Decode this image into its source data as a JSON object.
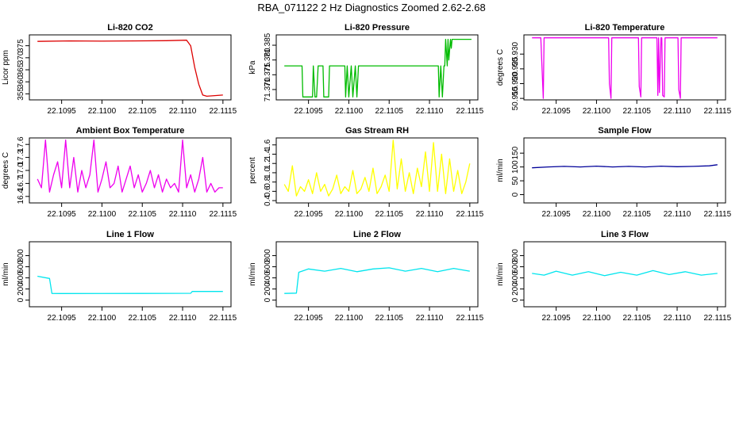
{
  "figure": {
    "title": "RBA_071122  2 Hz Diagnostics Zoomed 2.62-2.68"
  },
  "chart_data": [
    {
      "type": "line",
      "title": "Li-820 CO2",
      "ylabel": "Licor ppm",
      "color": "#dd0000",
      "xlim": [
        22.1091,
        22.1116
      ],
      "ylim": [
        352.5,
        379.5
      ],
      "xticks": [
        "22.1095",
        "22.1100",
        "22.1105",
        "22.1110",
        "22.1115"
      ],
      "yticks": [
        "355",
        "360",
        "365",
        "370",
        "375"
      ],
      "x": [
        22.1092,
        22.1096,
        22.11,
        22.1104,
        22.1108,
        22.11105,
        22.1111,
        22.11115,
        22.1112,
        22.11125,
        22.1113,
        22.1115
      ],
      "y": [
        376.8,
        377.0,
        376.9,
        377.0,
        377.1,
        377.3,
        375.0,
        366.0,
        359.0,
        354.5,
        354.0,
        354.5
      ]
    },
    {
      "type": "line",
      "title": "Li-820 Pressure",
      "ylabel": "kPa",
      "color": "#00bb00",
      "xlim": [
        22.1091,
        22.1116
      ],
      "ylim": [
        71.3665,
        71.3885
      ],
      "xticks": [
        "22.1095",
        "22.1100",
        "22.1105",
        "22.1110",
        "22.1115"
      ],
      "yticks": [
        "71.370",
        "71.375",
        "71.380",
        "71.385"
      ],
      "x": [
        22.1092,
        22.10942,
        22.10943,
        22.10955,
        22.10956,
        22.10958,
        22.1096,
        22.10962,
        22.10968,
        22.10969,
        22.10975,
        22.10976,
        22.10995,
        22.10996,
        22.10998,
        22.11,
        22.11003,
        22.11005,
        22.11008,
        22.1101,
        22.11012,
        22.11014,
        22.11016,
        22.11111,
        22.11112,
        22.11114,
        22.11116,
        22.11118,
        22.11119,
        22.1112,
        22.11122,
        22.11123,
        22.11124,
        22.11126,
        22.11127,
        22.11128,
        22.1113,
        22.11152
      ],
      "y": [
        71.378,
        71.378,
        71.3675,
        71.3675,
        71.378,
        71.3675,
        71.3675,
        71.378,
        71.378,
        71.3675,
        71.3675,
        71.378,
        71.378,
        71.3675,
        71.378,
        71.3675,
        71.378,
        71.3675,
        71.378,
        71.3675,
        71.378,
        71.378,
        71.378,
        71.378,
        71.3675,
        71.378,
        71.3675,
        71.378,
        71.378,
        71.387,
        71.378,
        71.387,
        71.38,
        71.387,
        71.384,
        71.387,
        71.387,
        71.387
      ]
    },
    {
      "type": "line",
      "title": "Li-820 Temperature",
      "ylabel": "degrees C",
      "color": "#ee00ee",
      "xlim": [
        22.1091,
        22.1116
      ],
      "ylim": [
        50.9145,
        50.9365
      ],
      "xticks": [
        "22.1095",
        "22.1100",
        "22.1105",
        "22.1110",
        "22.1115"
      ],
      "yticks": [
        "50.915",
        "50.920",
        "50.925",
        "50.930"
      ],
      "x": [
        22.1092,
        22.10931,
        22.10932,
        22.10934,
        22.10935,
        22.10936,
        22.11015,
        22.11016,
        22.11018,
        22.11019,
        22.11052,
        22.11053,
        22.11055,
        22.11056,
        22.11075,
        22.11076,
        22.11077,
        22.11078,
        22.1108,
        22.11081,
        22.11082,
        22.11084,
        22.11085,
        22.11101,
        22.11102,
        22.11104,
        22.11105,
        22.1115
      ],
      "y": [
        50.9355,
        50.9355,
        50.928,
        50.915,
        50.9355,
        50.9355,
        50.9355,
        50.92,
        50.915,
        50.9355,
        50.9355,
        50.919,
        50.9155,
        50.9355,
        50.9355,
        50.916,
        50.9355,
        50.917,
        50.9355,
        50.9355,
        50.916,
        50.9155,
        50.9355,
        50.9355,
        50.918,
        50.915,
        50.9355,
        50.9355
      ]
    },
    {
      "type": "line",
      "title": "Ambient Box Temperature",
      "ylabel": "degrees C",
      "color": "#ee00ee",
      "xlim": [
        22.1091,
        22.1116
      ],
      "ylim": [
        16.25,
        17.75
      ],
      "xticks": [
        "22.1095",
        "22.1100",
        "22.1105",
        "22.1110",
        "22.1115"
      ],
      "yticks": [
        "16.4",
        "16.7",
        "17.0",
        "17.3",
        "17.6"
      ],
      "x": [
        22.1092,
        22.10925,
        22.1093,
        22.10935,
        22.1094,
        22.10945,
        22.1095,
        22.10955,
        22.1096,
        22.10965,
        22.1097,
        22.10975,
        22.1098,
        22.10985,
        22.1099,
        22.10995,
        22.11,
        22.11005,
        22.1101,
        22.11015,
        22.1102,
        22.11025,
        22.1103,
        22.11035,
        22.1104,
        22.11045,
        22.1105,
        22.11055,
        22.1106,
        22.11065,
        22.1107,
        22.11075,
        22.1108,
        22.11085,
        22.1109,
        22.11095,
        22.111,
        22.11105,
        22.1111,
        22.11115,
        22.1112,
        22.11125,
        22.1113,
        22.11135,
        22.1114,
        22.11145,
        22.1115
      ],
      "y": [
        16.8,
        16.6,
        17.7,
        16.5,
        16.9,
        17.2,
        16.6,
        17.7,
        16.6,
        17.3,
        16.5,
        17.0,
        16.6,
        16.9,
        17.7,
        16.5,
        16.8,
        17.2,
        16.6,
        16.7,
        17.1,
        16.5,
        16.8,
        17.1,
        16.6,
        16.9,
        16.5,
        16.7,
        17.0,
        16.6,
        16.9,
        16.5,
        16.8,
        16.6,
        16.7,
        16.5,
        17.7,
        16.6,
        16.9,
        16.5,
        16.8,
        17.3,
        16.5,
        16.7,
        16.5,
        16.6,
        16.6
      ]
    },
    {
      "type": "line",
      "title": "Gas Stream RH",
      "ylabel": "percent",
      "color": "#ffff00",
      "xlim": [
        22.1091,
        22.1116
      ],
      "ylim": [
        0.35,
        1.75
      ],
      "xticks": [
        "22.1095",
        "22.1100",
        "22.1105",
        "22.1110",
        "22.1115"
      ],
      "yticks": [
        "0.4",
        "0.6",
        "0.8",
        "1.0",
        "1.2",
        "1.4",
        "1.6"
      ],
      "x": [
        22.1092,
        22.10925,
        22.1093,
        22.10935,
        22.1094,
        22.10945,
        22.1095,
        22.10955,
        22.1096,
        22.10965,
        22.1097,
        22.10975,
        22.1098,
        22.10985,
        22.1099,
        22.10995,
        22.11,
        22.11005,
        22.1101,
        22.11015,
        22.1102,
        22.11025,
        22.1103,
        22.11035,
        22.1104,
        22.11045,
        22.1105,
        22.11055,
        22.1106,
        22.11065,
        22.1107,
        22.11075,
        22.1108,
        22.11085,
        22.1109,
        22.11095,
        22.111,
        22.11105,
        22.1111,
        22.11115,
        22.1112,
        22.11125,
        22.1113,
        22.11135,
        22.1114,
        22.11145,
        22.1115
      ],
      "y": [
        0.75,
        0.6,
        1.15,
        0.5,
        0.7,
        0.6,
        0.85,
        0.55,
        1.0,
        0.6,
        0.75,
        0.5,
        0.65,
        0.95,
        0.55,
        0.7,
        0.6,
        1.05,
        0.55,
        0.65,
        0.9,
        0.6,
        1.1,
        0.55,
        0.7,
        0.95,
        0.6,
        1.7,
        0.65,
        1.3,
        0.6,
        1.0,
        0.55,
        1.1,
        0.7,
        1.45,
        0.6,
        1.65,
        0.6,
        1.4,
        0.55,
        1.3,
        0.6,
        1.05,
        0.55,
        0.8,
        1.2
      ]
    },
    {
      "type": "line",
      "title": "Sample Flow",
      "ylabel": "ml/min",
      "color": "#000099",
      "xlim": [
        22.1091,
        22.1116
      ],
      "ylim": [
        -30,
        205
      ],
      "xticks": [
        "22.1095",
        "22.1100",
        "22.1105",
        "22.1110",
        "22.1115"
      ],
      "yticks": [
        "0",
        "50",
        "100",
        "150"
      ],
      "x": [
        22.1092,
        22.1094,
        22.1096,
        22.1098,
        22.11,
        22.1102,
        22.1104,
        22.1106,
        22.1108,
        22.111,
        22.1112,
        22.1114,
        22.1115
      ],
      "y": [
        97,
        100,
        102,
        100,
        103,
        100,
        102,
        100,
        103,
        101,
        102,
        104,
        108
      ]
    },
    {
      "type": "line",
      "title": "Line 1 Flow",
      "ylabel": "ml/min",
      "color": "#00e5ee",
      "xlim": [
        22.1091,
        22.1116
      ],
      "ylim": [
        -120,
        1050
      ],
      "xticks": [
        "22.1095",
        "22.1100",
        "22.1105",
        "22.1110",
        "22.1115"
      ],
      "yticks": [
        "0",
        "200",
        "400",
        "600",
        "800"
      ],
      "x": [
        22.1092,
        22.10935,
        22.10938,
        22.1095,
        22.1105,
        22.1111,
        22.11112,
        22.1115
      ],
      "y": [
        430,
        390,
        120,
        118,
        120,
        122,
        155,
        155
      ]
    },
    {
      "type": "line",
      "title": "Line 2 Flow",
      "ylabel": "ml/min",
      "color": "#00e5ee",
      "xlim": [
        22.1091,
        22.1116
      ],
      "ylim": [
        -120,
        1050
      ],
      "xticks": [
        "22.1095",
        "22.1100",
        "22.1105",
        "22.1110",
        "22.1115"
      ],
      "yticks": [
        "0",
        "200",
        "400",
        "600",
        "800"
      ],
      "x": [
        22.1092,
        22.10935,
        22.10938,
        22.1095,
        22.1097,
        22.1099,
        22.1101,
        22.1103,
        22.1105,
        22.1107,
        22.1109,
        22.1111,
        22.1113,
        22.1115
      ],
      "y": [
        120,
        125,
        500,
        560,
        520,
        570,
        510,
        560,
        580,
        520,
        570,
        510,
        570,
        520
      ]
    },
    {
      "type": "line",
      "title": "Line 3 Flow",
      "ylabel": "ml/min",
      "color": "#00e5ee",
      "xlim": [
        22.1091,
        22.1116
      ],
      "ylim": [
        -120,
        1050
      ],
      "xticks": [
        "22.1095",
        "22.1100",
        "22.1105",
        "22.1110",
        "22.1115"
      ],
      "yticks": [
        "0",
        "200",
        "400",
        "600",
        "800"
      ],
      "x": [
        22.1092,
        22.10935,
        22.1095,
        22.1097,
        22.1099,
        22.1101,
        22.1103,
        22.1105,
        22.1107,
        22.1109,
        22.1111,
        22.1113,
        22.1115
      ],
      "y": [
        480,
        450,
        520,
        450,
        510,
        440,
        500,
        450,
        530,
        460,
        510,
        450,
        480
      ]
    }
  ]
}
